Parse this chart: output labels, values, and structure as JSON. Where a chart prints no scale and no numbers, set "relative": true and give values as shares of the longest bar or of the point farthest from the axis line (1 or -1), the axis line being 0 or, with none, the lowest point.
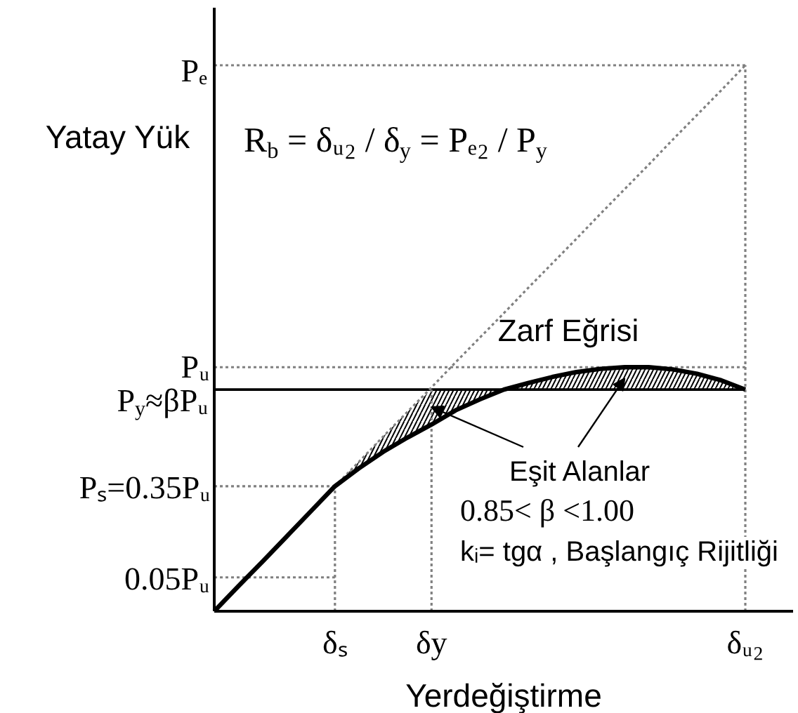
{
  "chart_data": {
    "type": "line",
    "relative": true,
    "xlabel": "Yerdeğiştirme",
    "ylabel": "Yatay Yük",
    "marker": "none",
    "categories": [
      null,
      null,
      null,
      null,
      null,
      "δₛ",
      null,
      null,
      null,
      "δy",
      null,
      null,
      null,
      null,
      null,
      null,
      null,
      null,
      null,
      null,
      null,
      null,
      "δᵤ₂"
    ],
    "series": [
      {
        "name": "Zarf Eğrisi",
        "color": "#000000",
        "line_style": "solid",
        "values": [
          0,
          0.046,
          0.091,
          0.137,
          0.183,
          0.229,
          0.262,
          0.292,
          0.318,
          0.342,
          0.368,
          0.388,
          0.406,
          0.418,
          0.429,
          0.438,
          0.444,
          0.447,
          0.447,
          0.443,
          0.435,
          0.423,
          0.406
        ],
        "lower": [
          null,
          null,
          null,
          null,
          null,
          0.229,
          0.262,
          0.292,
          0.318,
          0.342,
          0.368,
          0.388,
          0.406,
          0.406,
          0.406,
          0.406,
          0.406,
          0.406,
          0.406,
          0.406,
          0.406,
          0.406,
          0.406
        ],
        "upper": [
          null,
          null,
          null,
          null,
          null,
          0.229,
          0.274,
          0.32,
          0.365,
          0.406,
          0.406,
          0.406,
          0.406,
          0.418,
          0.429,
          0.438,
          0.444,
          0.447,
          0.447,
          0.443,
          0.435,
          0.423,
          0.406
        ]
      },
      {
        "color": "#808080",
        "line_style": "dotted",
        "values": [
          null,
          null,
          null,
          null,
          null,
          0.229,
          0.274,
          0.32,
          0.365,
          0.41,
          0.456,
          0.501,
          0.546,
          0.592,
          0.637,
          0.682,
          0.728,
          0.773,
          0.818,
          0.864,
          0.909,
          0.954,
          1.0
        ]
      }
    ],
    "ref_lines": [
      {
        "axis": "y",
        "value": 1.0,
        "color": "#808080",
        "line_style": "dotted"
      },
      {
        "axis": "y",
        "value": 0.447,
        "color": "#808080",
        "line_style": "dotted"
      },
      {
        "axis": "y",
        "value": 0.406,
        "color": "#000000",
        "line_style": "solid"
      },
      {
        "axis": "y",
        "value": 0.229,
        "color": "#808080",
        "line_style": "dotted"
      },
      {
        "axis": "y",
        "value": 0.062,
        "color": "#808080",
        "line_style": "dotted"
      },
      {
        "axis": "x",
        "value": "δₛ",
        "color": "#808080",
        "line_style": "dotted"
      },
      {
        "axis": "x",
        "value": "δy",
        "color": "#808080",
        "line_style": "dotted"
      },
      {
        "axis": "x",
        "value": "δᵤ₂",
        "color": "#808080",
        "line_style": "dotted"
      }
    ],
    "annotations": [
      "R$_{b}$ = δᵤ₂ / δ$_{y}$ = Pₑ₂ / P$_{y}$",
      "Eşit Alanlar",
      "0.85< β <1.00",
      "kᵢ= tgα , Başlangıç Rijitliği",
      "Pₑ",
      "Pᵤ",
      "P$_{y}$≈βPᵤ",
      "Pₛ=0.35Pᵤ",
      "0.05Pᵤ"
    ]
  }
}
